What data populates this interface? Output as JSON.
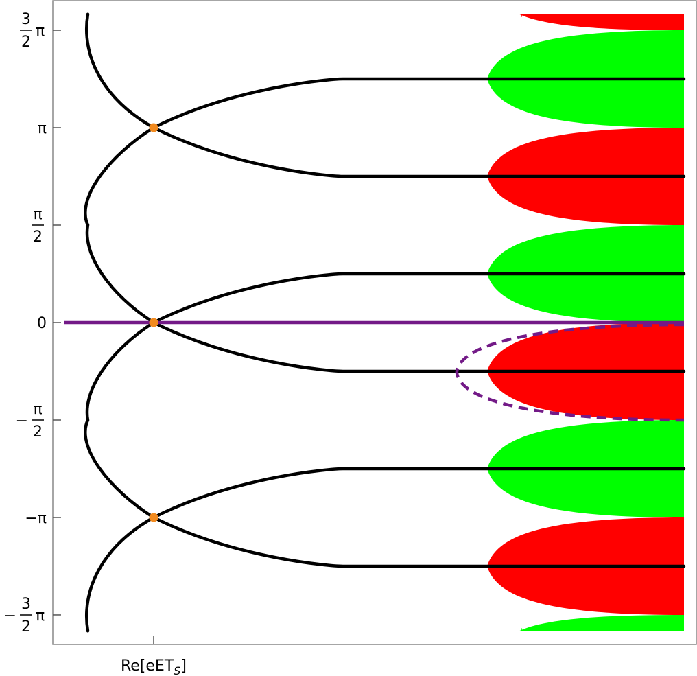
{
  "chart_data": {
    "type": "line",
    "title": "",
    "xlabel": "Re[eET",
    "xlabel_sub": "S",
    "xlabel_close": "]",
    "ylabel": "",
    "ylim": [
      -4.97,
      4.97
    ],
    "grid": false,
    "yticks": [
      {
        "value": 4.712,
        "sign": "",
        "num": "3",
        "den": "2",
        "after": "π",
        "kind": "frac-mult"
      },
      {
        "value": 3.1416,
        "text": "π",
        "kind": "simple"
      },
      {
        "value": 1.5708,
        "sign": "",
        "num": "π",
        "den": "2",
        "kind": "frac"
      },
      {
        "value": 0,
        "text": "0",
        "kind": "simple"
      },
      {
        "value": -1.5708,
        "sign": "−",
        "num": "π",
        "den": "2",
        "kind": "frac"
      },
      {
        "value": -3.1416,
        "text": "−π",
        "kind": "simple"
      },
      {
        "value": -4.712,
        "sign": "−",
        "num": "3",
        "den": "2",
        "after": "π",
        "kind": "frac-mult"
      }
    ],
    "saddle_points": [
      {
        "x": 0,
        "y": 3.1416
      },
      {
        "x": 0,
        "y": 0
      },
      {
        "x": 0,
        "y": -3.1416
      }
    ],
    "purple_line_y": 0,
    "purple_dashed_contour": {
      "y_top": 0,
      "y_bottom": -1.5708,
      "x_tip": 4.7
    },
    "regions": [
      {
        "color": "red",
        "y_from": 4.712,
        "y_to": 5.0,
        "partial": true
      },
      {
        "color": "green",
        "y_from": 3.1416,
        "y_to": 4.712
      },
      {
        "color": "red",
        "y_from": 1.5708,
        "y_to": 3.1416
      },
      {
        "color": "green",
        "y_from": 0,
        "y_to": 1.5708
      },
      {
        "color": "red",
        "y_from": -1.5708,
        "y_to": 0
      },
      {
        "color": "green",
        "y_from": -3.1416,
        "y_to": -1.5708
      },
      {
        "color": "red",
        "y_from": -4.712,
        "y_to": -3.1416
      },
      {
        "color": "green",
        "y_from": -5.0,
        "y_to": -4.712,
        "partial": true
      }
    ],
    "asymptote_levels": [
      3.927,
      2.3562,
      0.7854,
      -0.7854,
      -2.3562,
      -3.927
    ],
    "colors": {
      "red": "#ff0000",
      "green": "#00ff00",
      "black": "#000000",
      "purple": "#731a87",
      "orange": "#f28a1e"
    }
  }
}
